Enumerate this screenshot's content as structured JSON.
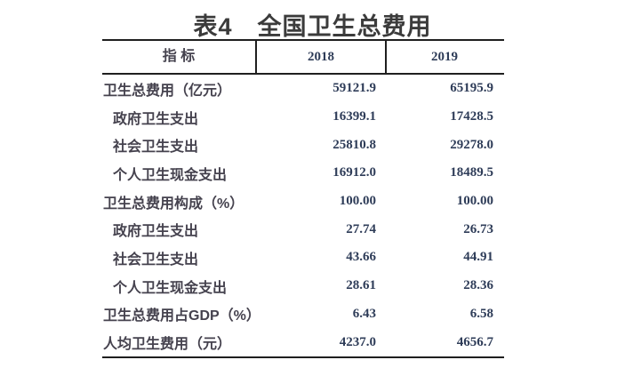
{
  "title": {
    "text": "表4　全国卫生总费用"
  },
  "table": {
    "header": {
      "indicator": "指  标",
      "year1": "2018",
      "year2": "2019"
    },
    "rows": [
      {
        "label": "卫生总费用（亿元）",
        "v2018": "59121.9",
        "v2019": "65195.9",
        "indent": false
      },
      {
        "label": "政府卫生支出",
        "v2018": "16399.1",
        "v2019": "17428.5",
        "indent": true
      },
      {
        "label": "社会卫生支出",
        "v2018": "25810.8",
        "v2019": "29278.0",
        "indent": true
      },
      {
        "label": "个人卫生现金支出",
        "v2018": "16912.0",
        "v2019": "18489.5",
        "indent": true
      },
      {
        "label": "卫生总费用构成（%）",
        "v2018": "100.00",
        "v2019": "100.00",
        "indent": false
      },
      {
        "label": "政府卫生支出",
        "v2018": "27.74",
        "v2019": "26.73",
        "indent": true
      },
      {
        "label": "社会卫生支出",
        "v2018": "43.66",
        "v2019": "44.91",
        "indent": true
      },
      {
        "label": "个人卫生现金支出",
        "v2018": "28.61",
        "v2019": "28.36",
        "indent": true
      },
      {
        "label": "卫生总费用占GDP（%）",
        "v2018": "6.43",
        "v2019": "6.58",
        "indent": false
      },
      {
        "label": "人均卫生费用（元）",
        "v2018": "4237.0",
        "v2019": "4656.7",
        "indent": false
      }
    ]
  },
  "colors": {
    "title": "#3b3b3b",
    "label": "#45424e",
    "number": "#2e3c58",
    "border": "#1f1f1f",
    "background": "#ffffff"
  }
}
